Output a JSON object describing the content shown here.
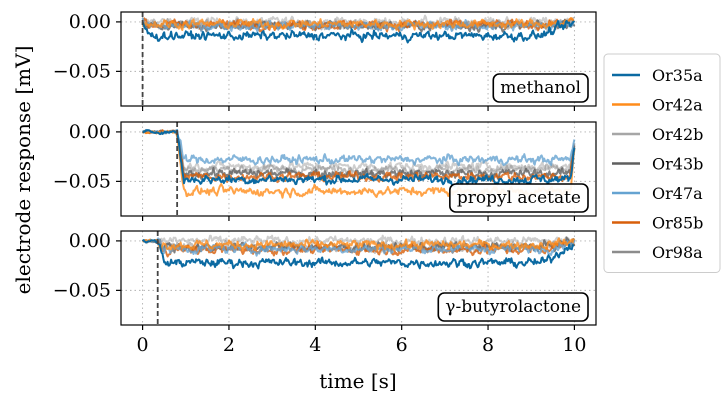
{
  "chart_data": {
    "type": "line",
    "xlabel": "time [s]",
    "ylabel": "electrode response [mV]",
    "xlim": [
      -0.5,
      10.5
    ],
    "xticks": [
      0,
      2,
      4,
      6,
      8,
      10
    ],
    "xtick_labels": [
      "0",
      "2",
      "4",
      "6",
      "8",
      "10"
    ],
    "ylim": [
      -0.085,
      0.01
    ],
    "yticks": [
      0.0,
      -0.05
    ],
    "ytick_labels": [
      "0.00",
      "−0.05"
    ],
    "grid": true,
    "legend_position": "right",
    "series": [
      {
        "name": "Or35a",
        "color": "#0b6aa2"
      },
      {
        "name": "Or42a",
        "color": "#ff8c1a"
      },
      {
        "name": "Or42b",
        "color": "#a6a6a6"
      },
      {
        "name": "Or43b",
        "color": "#5f5f5f"
      },
      {
        "name": "Or47a",
        "color": "#65a3d1"
      },
      {
        "name": "Or85b",
        "color": "#d85f0a"
      },
      {
        "name": "Or98a",
        "color": "#8c8c8c"
      }
    ],
    "panels": [
      {
        "label": "methanol",
        "onset": 0.0,
        "responses": {
          "Or35a": -0.014,
          "Or42a": -0.002,
          "Or42b": 0.0,
          "Or43b": -0.004,
          "Or47a": -0.004,
          "Or85b": -0.003,
          "Or98a": -0.003
        },
        "rise_time": 9.2
      },
      {
        "label": "propyl acetate",
        "onset": 0.8,
        "responses": {
          "Or35a": -0.048,
          "Or42a": -0.06,
          "Or42b": -0.035,
          "Or43b": -0.042,
          "Or47a": -0.028,
          "Or85b": -0.045,
          "Or98a": -0.038
        },
        "rise_time": 9.9
      },
      {
        "label": "γ-butyrolactone",
        "onset": 0.35,
        "responses": {
          "Or35a": -0.022,
          "Or42a": -0.004,
          "Or42b": 0.0,
          "Or43b": -0.006,
          "Or47a": -0.008,
          "Or85b": -0.009,
          "Or98a": -0.006
        },
        "rise_time": 9.3
      }
    ]
  }
}
